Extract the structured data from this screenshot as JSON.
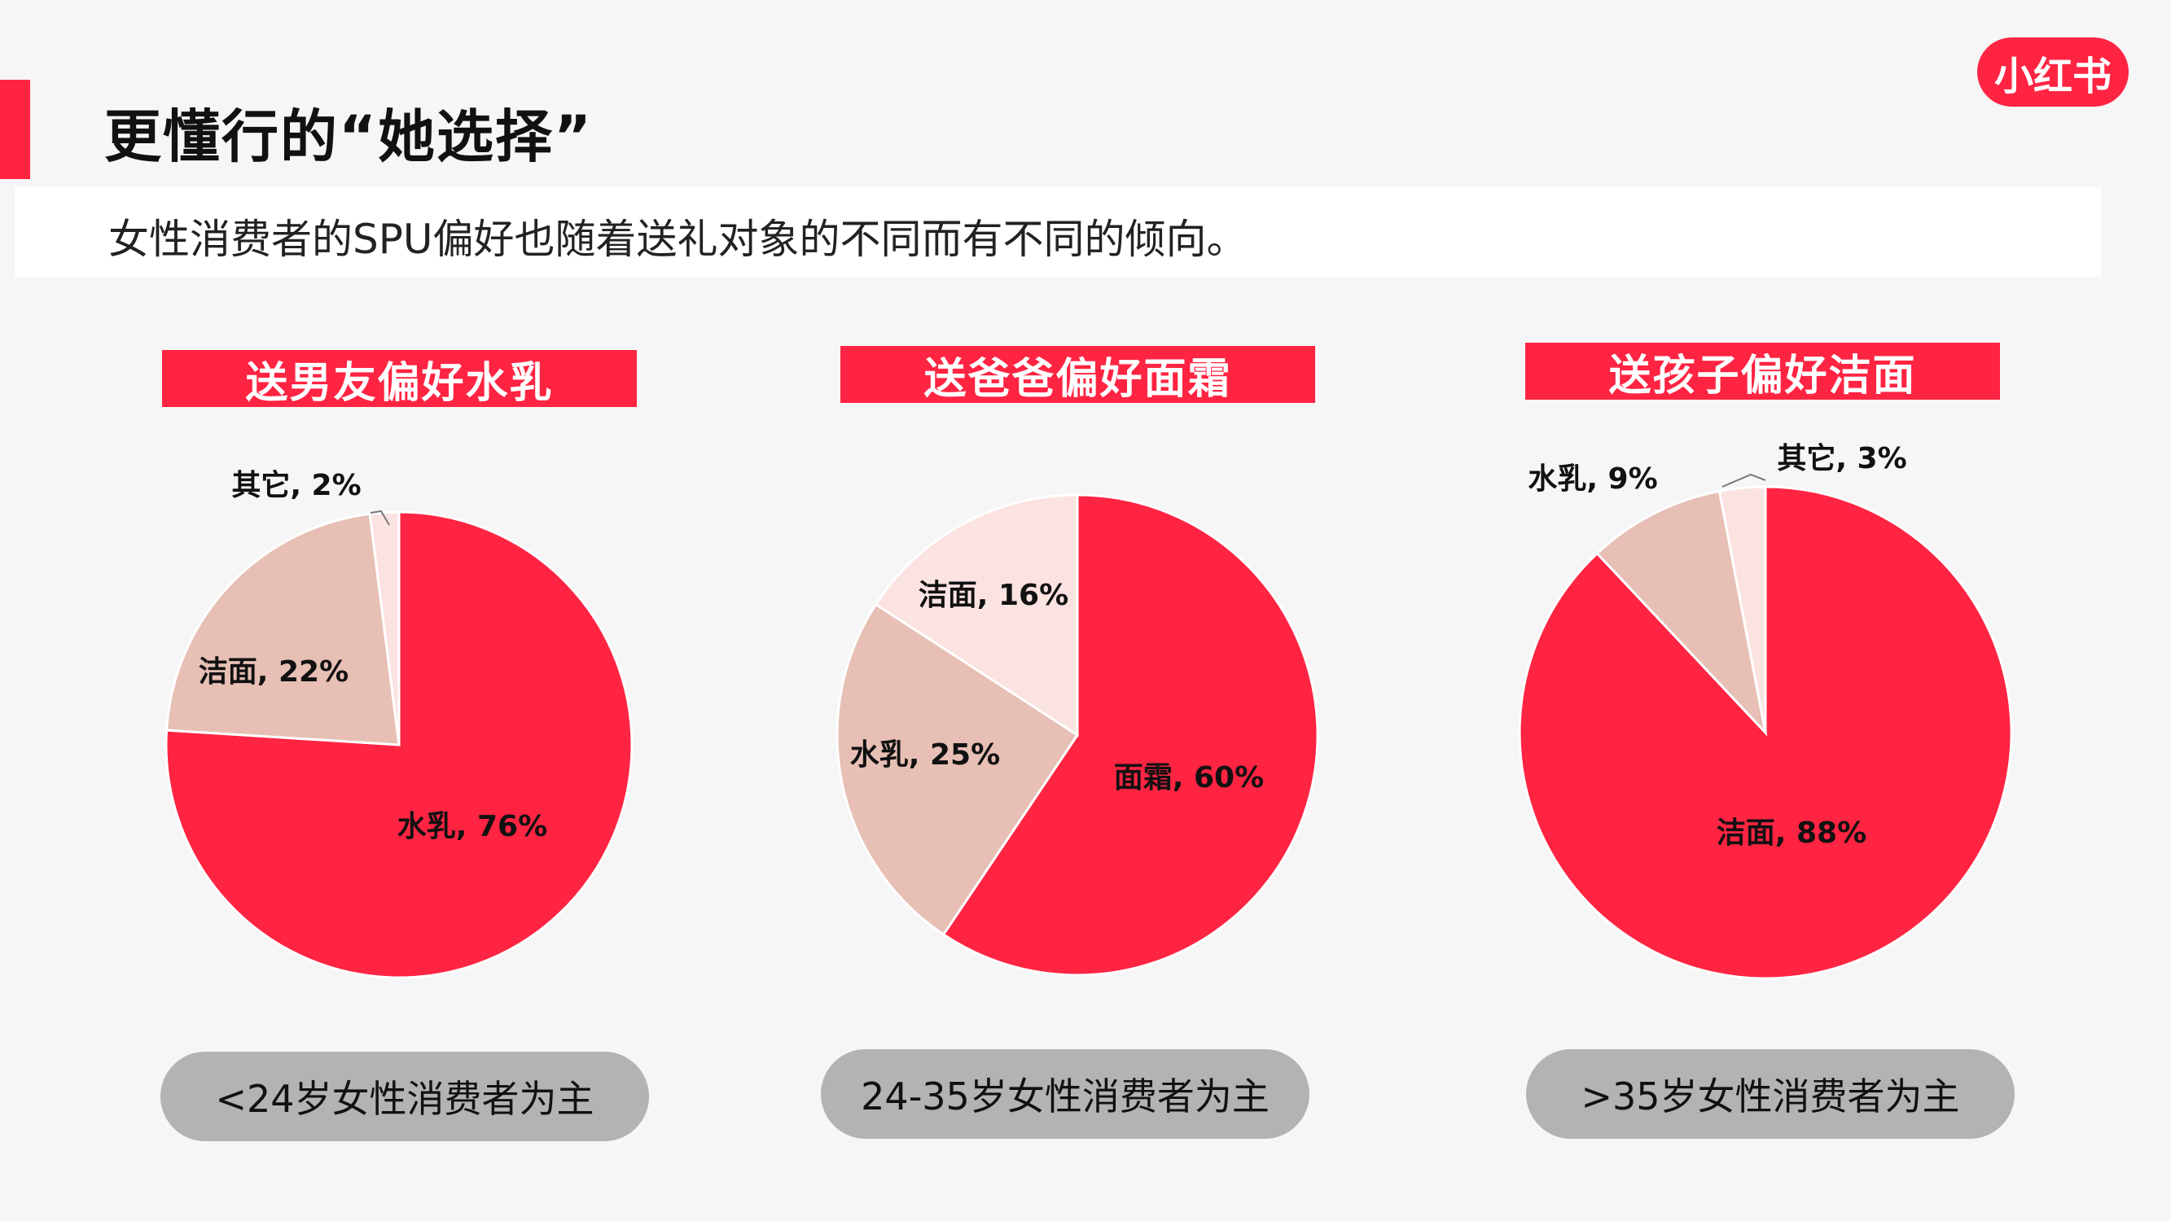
{
  "title": "更懂行的“她选择”",
  "subtitle": "女性消费者的SPU偏好也随着送礼对象的不同而有不同的倾向。",
  "logo_text": "小红书",
  "colors": {
    "accent": "#ff2442",
    "red": "#ff2442",
    "tan": "#e7bfb4",
    "pale": "#fbe3e1",
    "pill": "#b3b3b3"
  },
  "chart_data": [
    {
      "type": "pie",
      "title": "送男友偏好水乳",
      "caption": "<24岁女性消费者为主",
      "slices": [
        {
          "name": "水乳",
          "value": 76,
          "label": "水乳, 76%",
          "color": "#ff2442"
        },
        {
          "name": "洁面",
          "value": 22,
          "label": "洁面, 22%",
          "color": "#e7bfb4"
        },
        {
          "name": "其它",
          "value": 2,
          "label": "其它, 2%",
          "color": "#fbe3e1"
        }
      ]
    },
    {
      "type": "pie",
      "title": "送爸爸偏好面霜",
      "caption": "24-35岁女性消费者为主",
      "slices": [
        {
          "name": "面霜",
          "value": 60,
          "label": "面霜, 60%",
          "color": "#ff2442"
        },
        {
          "name": "水乳",
          "value": 25,
          "label": "水乳, 25%",
          "color": "#e7bfb4"
        },
        {
          "name": "洁面",
          "value": 16,
          "label": "洁面, 16%",
          "color": "#fbe3e1"
        }
      ]
    },
    {
      "type": "pie",
      "title": "送孩子偏好洁面",
      "caption": ">35岁女性消费者为主",
      "slices": [
        {
          "name": "洁面",
          "value": 88,
          "label": "洁面, 88%",
          "color": "#ff2442"
        },
        {
          "name": "水乳",
          "value": 9,
          "label": "水乳, 9%",
          "color": "#e7bfb4"
        },
        {
          "name": "其它",
          "value": 3,
          "label": "其它, 3%",
          "color": "#fbe3e1"
        }
      ]
    }
  ]
}
